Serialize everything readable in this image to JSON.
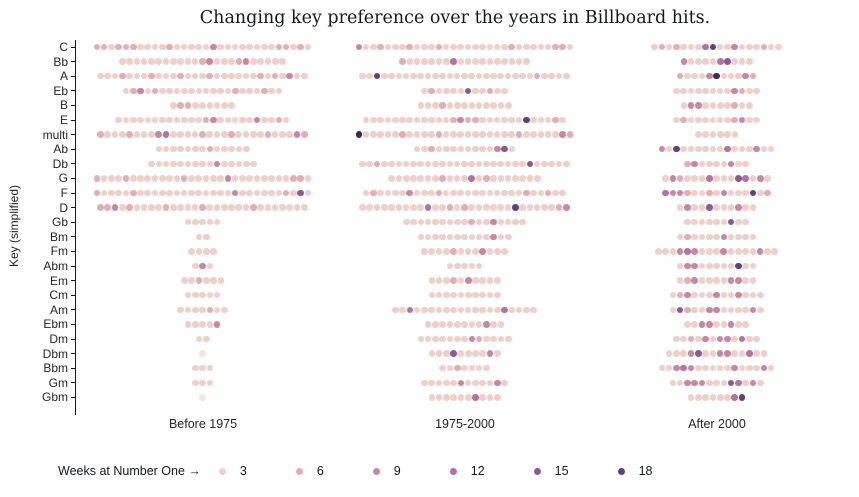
{
  "title": "Changing key preference over the years in Billboard hits.",
  "y_axis_label": "Key (simplified)",
  "legend": {
    "title": "Weeks at Number One →",
    "entries": [
      {
        "value": "3",
        "level": 2
      },
      {
        "value": "6",
        "level": 3
      },
      {
        "value": "9",
        "level": 4
      },
      {
        "value": "12",
        "level": 5
      },
      {
        "value": "15",
        "level": 6
      },
      {
        "value": "18",
        "level": 7
      }
    ]
  },
  "palette": [
    "#f6e5de",
    "#eecfc9",
    "#e3adb5",
    "#c787a4",
    "#b272a3",
    "#8c5a92",
    "#5f4377",
    "#3e2a52"
  ],
  "chart_data": {
    "type": "scatter",
    "description": "Categorical dot plot: one dot per hit song, x = era, y = key, dot color encodes weeks at number one (light pink = few, dark purple = many)",
    "x_categories": [
      "Before 1975",
      "1975-2000",
      "After 2000"
    ],
    "y_categories": [
      "C",
      "Bb",
      "A",
      "Eb",
      "B",
      "E",
      "multi",
      "Ab",
      "Db",
      "G",
      "F",
      "D",
      "Gb",
      "Bm",
      "Fm",
      "Abm",
      "Em",
      "Cm",
      "Am",
      "Ebm",
      "Dm",
      "Dbm",
      "Bbm",
      "Gm",
      "Gbm"
    ],
    "color_variable": "Weeks at Number One",
    "color_level_to_weeks": {
      "1": 1,
      "2": 3,
      "3": 6,
      "4": 9,
      "5": 12,
      "6": 15,
      "7": 18,
      "8": 20
    },
    "series": {
      "Before 1975": {
        "C": "332333222232222242222222233232",
        "Bb": "22222222222342223422222",
        "A": "22232223222322232222223232422",
        "Eb": "2342322222222223222322",
        "B": "233222222",
        "E": "222222222222342222242232",
        "multi": "32223222452222322232222322243",
        "Ab": "2222222322222",
        "Db": "222222222422222",
        "G": "322232222222322222422222222332",
        "F": "322223222222222222242222223262",
        "D": "33423222232222322222232222222",
        "Gb": "22222",
        "Bm": "22",
        "Fm": "2222",
        "Abm": "242",
        "Em": "223222",
        "Cm": "22222",
        "Am": "2222322",
        "Ebm": "22224",
        "Dm": "22",
        "Dbm": "1",
        "Bbm": "222",
        "Gm": "222",
        "Gbm": "1"
      },
      "1975-2000": {
        "C": "422322232223222222222322222332",
        "Bb": "322222252222222222",
        "A": "22722222222222222222222232222",
        "Eb": "232222622322",
        "B": "2223222222222",
        "E": "2222222222223433222222722232",
        "multi": "822222322223222222222232222243",
        "Ab": "22322222222462",
        "Db": "22322222222222222222222622222",
        "G": "222222232225232222222",
        "F": "2322224222322222222222322322",
        "D": "22222222252232322222272222234",
        "Gb": "22222222232242222",
        "Bm": "2222222222422",
        "Fm": "222232224222",
        "Abm": "22222",
        "Em": "2223242222",
        "Cm": "2222222222",
        "Am": "22522222222222252222",
        "Ebm": "22222222422",
        "Dm": "2222222432222",
        "Dbm": "2226222242",
        "Bbm": "2232222",
        "Gm": "222224222242",
        "Gbm": "2222225222"
      },
      "After 2000": {
        "C": "232322257224222322",
        "Bb": "4222256222",
        "A": "32224822243",
        "Eb": "222222224322",
        "B": "2442222322",
        "E": "232222223422",
        "multi": "222222",
        "Ab": "4272222225222422",
        "Db": "342222422",
        "G": "243222522265242",
        "F": "544322324222723",
        "D": "24226222422",
        "Gb": "222222622",
        "Bm": "23222242222",
        "Fm": "22245422242222422",
        "Abm": "24422222722",
        "Em": "23422224422",
        "Cm": "2342224224222",
        "Am": "2632244222242",
        "Ebm": "224422422",
        "Dm": "223242442522",
        "Dbm": "22246224422522",
        "Bbm": "2245422222422242",
        "Gm": "2244422265242",
        "Gbm": "22222257"
      }
    }
  }
}
